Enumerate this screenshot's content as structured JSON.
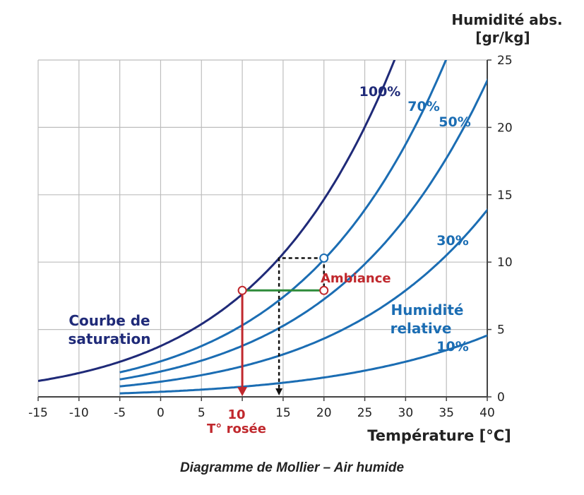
{
  "caption": "Diagramme de Mollier – Air humide",
  "colors": {
    "saturation": "#1f2a78",
    "rh": "#1b6db3",
    "grid": "#bdbdbd",
    "marker": "#c0282d",
    "green": "#2e8b3a"
  },
  "chart_data": {
    "type": "line",
    "title": "",
    "xlabel": "Température [°C]",
    "ylabel_line1": "Humidité abs.",
    "ylabel_line2": "[gr/kg]",
    "xlim": [
      -15,
      40
    ],
    "ylim": [
      0,
      25
    ],
    "xticks": [
      "-15",
      "-10",
      "-5",
      "0",
      "5",
      "10",
      "15",
      "20",
      "25",
      "30",
      "35",
      "40"
    ],
    "yticks": [
      "0",
      "5",
      "10",
      "15",
      "20",
      "25"
    ],
    "grid": true,
    "series": [
      {
        "name": "100%",
        "rh": 1.0,
        "start": -15
      },
      {
        "name": "70%",
        "rh": 0.7,
        "start": -5
      },
      {
        "name": "50%",
        "rh": 0.5,
        "start": -5
      },
      {
        "name": "30%",
        "rh": 0.3,
        "start": -5
      },
      {
        "name": "10%",
        "rh": 0.1,
        "start": -5
      }
    ],
    "annotations": {
      "saturation_line1": "Courbe de",
      "saturation_line2": "saturation",
      "ambiance": "Ambiance",
      "rh_line1": "Humidité",
      "rh_line2": "relative",
      "dew_value": "10",
      "dew_label": "T° rosée"
    },
    "points": {
      "ambiance": [
        20,
        7.9
      ],
      "dew_point": [
        10,
        7.9
      ],
      "saturated_20": [
        20,
        10.3
      ],
      "projection_15": [
        14.5,
        10.3
      ]
    }
  }
}
